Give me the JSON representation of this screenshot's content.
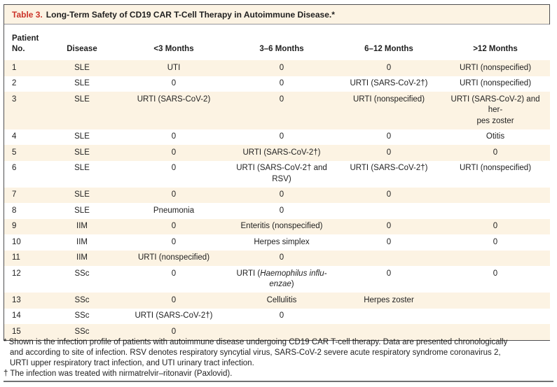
{
  "colors": {
    "accent_red": "#cb342a",
    "row_stripe": "#fcf3e3",
    "border_dark": "#4f4f51",
    "separator_gray": "#96969a",
    "bottom_rule_gray": "#6f7072",
    "text": "#1f1f1f"
  },
  "table": {
    "label": "Table 3.",
    "title": "Long-Term Safety of CD19 CAR T-Cell Therapy in Autoimmune Disease.*",
    "columns": [
      "Patient\nNo.",
      "Disease",
      "<3 Months",
      "3–6 Months",
      "6–12 Months",
      ">12 Months"
    ],
    "rows": [
      {
        "no": "1",
        "disease": "SLE",
        "cells": [
          "UTI",
          "0",
          "0",
          "URTI (nonspecified)"
        ]
      },
      {
        "no": "2",
        "disease": "SLE",
        "cells": [
          "0",
          "0",
          "URTI (SARS-CoV-2†)",
          "URTI (nonspecified)"
        ]
      },
      {
        "no": "3",
        "disease": "SLE",
        "cells": [
          "URTI (SARS-CoV-2)",
          "0",
          "URTI (nonspecified)",
          "URTI (SARS-CoV-2) and her-\npes zoster"
        ]
      },
      {
        "no": "4",
        "disease": "SLE",
        "cells": [
          "0",
          "0",
          "0",
          "Otitis"
        ]
      },
      {
        "no": "5",
        "disease": "SLE",
        "cells": [
          "0",
          "URTI (SARS-CoV-2†)",
          "0",
          "0"
        ]
      },
      {
        "no": "6",
        "disease": "SLE",
        "cells": [
          "0",
          "URTI (SARS-CoV-2† and\nRSV)",
          "URTI (SARS-CoV-2†)",
          "URTI (nonspecified)"
        ]
      },
      {
        "no": "7",
        "disease": "SLE",
        "cells": [
          "0",
          "0",
          "0",
          ""
        ]
      },
      {
        "no": "8",
        "disease": "SLE",
        "cells": [
          "Pneumonia",
          "0",
          "",
          ""
        ]
      },
      {
        "no": "9",
        "disease": "IIM",
        "cells": [
          "0",
          "Enteritis (nonspecified)",
          "0",
          "0"
        ]
      },
      {
        "no": "10",
        "disease": "IIM",
        "cells": [
          "0",
          "Herpes simplex",
          "0",
          "0"
        ]
      },
      {
        "no": "11",
        "disease": "IIM",
        "cells": [
          "URTI (nonspecified)",
          "0",
          "",
          ""
        ]
      },
      {
        "no": "12",
        "disease": "SSc",
        "cells": [
          "0",
          [
            {
              "text": "URTI ("
            },
            {
              "text": "Haemophilus influ-\nenzae",
              "italic": true
            },
            {
              "text": ")"
            }
          ],
          "0",
          "0"
        ]
      },
      {
        "no": "13",
        "disease": "SSc",
        "cells": [
          "0",
          "Cellulitis",
          "Herpes zoster",
          ""
        ]
      },
      {
        "no": "14",
        "disease": "SSc",
        "cells": [
          "URTI (SARS-CoV-2†)",
          "0",
          "",
          ""
        ]
      },
      {
        "no": "15",
        "disease": "SSc",
        "cells": [
          "0",
          "",
          "",
          ""
        ]
      }
    ]
  },
  "footnotes": [
    "* Shown is the infection profile of patients with autoimmune disease undergoing CD19 CAR T-cell therapy. Data are presented chronologically\nand according to site of infection. RSV denotes respiratory syncytial virus, SARS-CoV-2 severe acute respiratory syndrome coronavirus 2,\nURTI upper respiratory tract infection, and UTI urinary tract infection.",
    "† The infection was treated with nirmatrelvir–ritonavir (Paxlovid)."
  ]
}
